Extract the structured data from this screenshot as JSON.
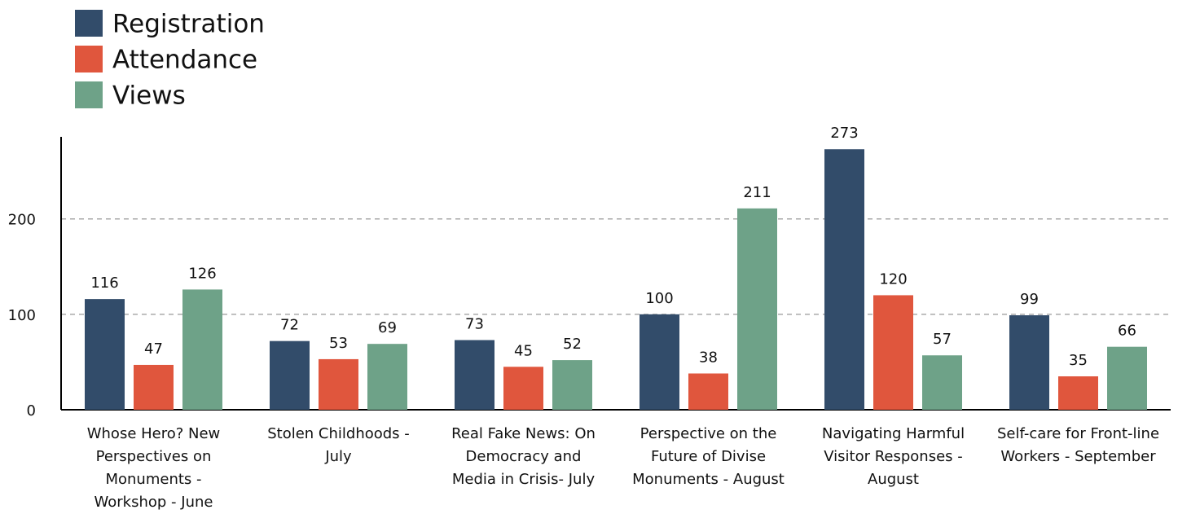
{
  "chart_data": {
    "type": "bar",
    "categories": [
      "Whose Hero? New Perspectives on Monuments - Workshop - June",
      "Stolen Childhoods - July",
      "Real Fake News: On Democracy and Media in Crisis- July",
      "Perspective on the Future of Divise Monuments - August",
      "Navigating Harmful Visitor Responses - August",
      "Self-care for Front-line Workers - September"
    ],
    "series": [
      {
        "name": "Registration",
        "color": "#324c6a",
        "values": [
          116,
          72,
          73,
          100,
          273,
          99
        ]
      },
      {
        "name": "Attendance",
        "color": "#e0563d",
        "values": [
          47,
          53,
          45,
          38,
          120,
          35
        ]
      },
      {
        "name": "Views",
        "color": "#6ea288",
        "values": [
          126,
          69,
          52,
          211,
          57,
          66
        ]
      }
    ],
    "ylim": [
      0,
      286
    ],
    "yticks": [
      0,
      100,
      200
    ],
    "grid": true,
    "legend": "top-left"
  }
}
